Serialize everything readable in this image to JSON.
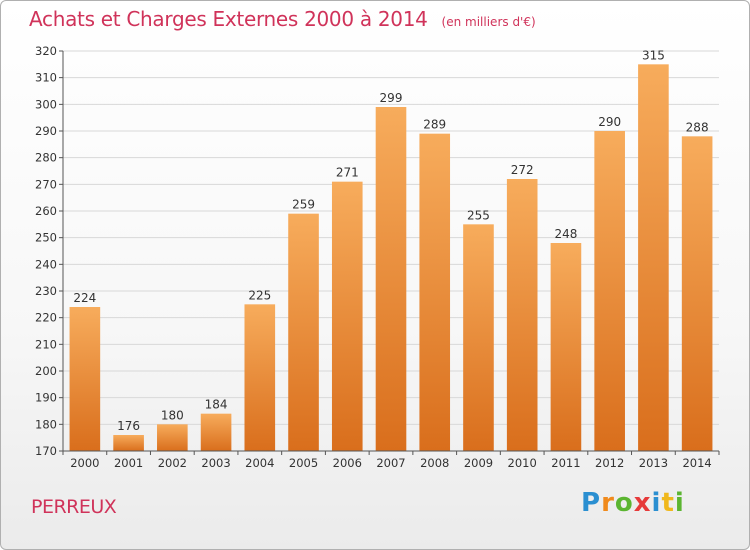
{
  "header": {
    "title": "Achats et Charges Externes 2000 à 2014",
    "subtitle": "(en milliers d'€)"
  },
  "footer": {
    "commune": "PERREUX"
  },
  "logo": {
    "letters": [
      "P",
      "r",
      "o",
      "x",
      "i",
      "t",
      "i"
    ],
    "colors": [
      "#2a8fd1",
      "#f08a1c",
      "#5bb531",
      "#e63a3a",
      "#2a8fd1",
      "#f0b81c",
      "#5bb531"
    ]
  },
  "colors": {
    "bar_light": "#f7ac5c",
    "bar_dark": "#d96e1c",
    "grid": "#d8d8d8",
    "axis": "#555555"
  },
  "chart_data": {
    "type": "bar",
    "title": "Achats et Charges Externes 2000 à 2014",
    "subtitle": "(en milliers d'€)",
    "xlabel": "",
    "ylabel": "",
    "categories": [
      "2000",
      "2001",
      "2002",
      "2003",
      "2004",
      "2005",
      "2006",
      "2007",
      "2008",
      "2009",
      "2010",
      "2011",
      "2012",
      "2013",
      "2014"
    ],
    "values": [
      224,
      176,
      180,
      184,
      225,
      259,
      271,
      299,
      289,
      255,
      272,
      248,
      290,
      315,
      288
    ],
    "ylim": [
      170,
      320
    ],
    "yticks": [
      170,
      180,
      190,
      200,
      210,
      220,
      230,
      240,
      250,
      260,
      270,
      280,
      290,
      300,
      310,
      320
    ],
    "grid": true,
    "data_labels": true
  }
}
